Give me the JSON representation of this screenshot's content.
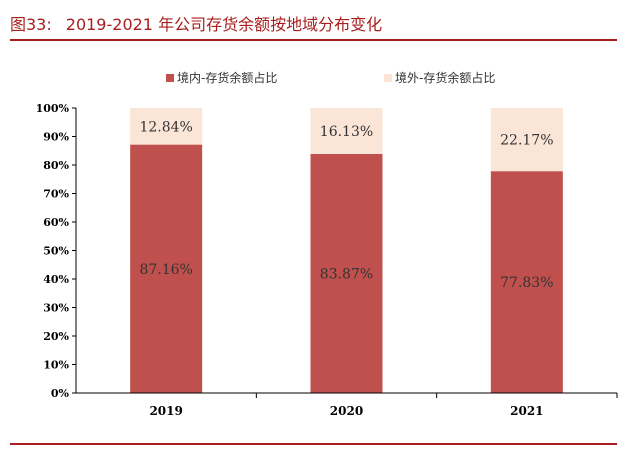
{
  "figure": {
    "number": "图33:",
    "title": "2019-2021 年公司存货余额按地域分布变化"
  },
  "colors": {
    "accent": "#a81e1e",
    "domestic": "#c0504d",
    "overseas": "#fbe5d6"
  },
  "chart_data": {
    "type": "bar",
    "stacked": true,
    "categories": [
      "2019",
      "2020",
      "2021"
    ],
    "series": [
      {
        "name": "境内-存货余额占比",
        "values": [
          87.16,
          83.87,
          77.83
        ],
        "labels": [
          "87.16%",
          "83.87%",
          "77.83%"
        ]
      },
      {
        "name": "境外-存货余额占比",
        "values": [
          12.84,
          16.13,
          22.17
        ],
        "labels": [
          "12.84%",
          "16.13%",
          "22.17%"
        ]
      }
    ],
    "yticks": [
      "0%",
      "10%",
      "20%",
      "30%",
      "40%",
      "50%",
      "60%",
      "70%",
      "80%",
      "90%",
      "100%"
    ],
    "ylim": [
      0,
      100
    ],
    "legend": "top",
    "grid": false
  }
}
